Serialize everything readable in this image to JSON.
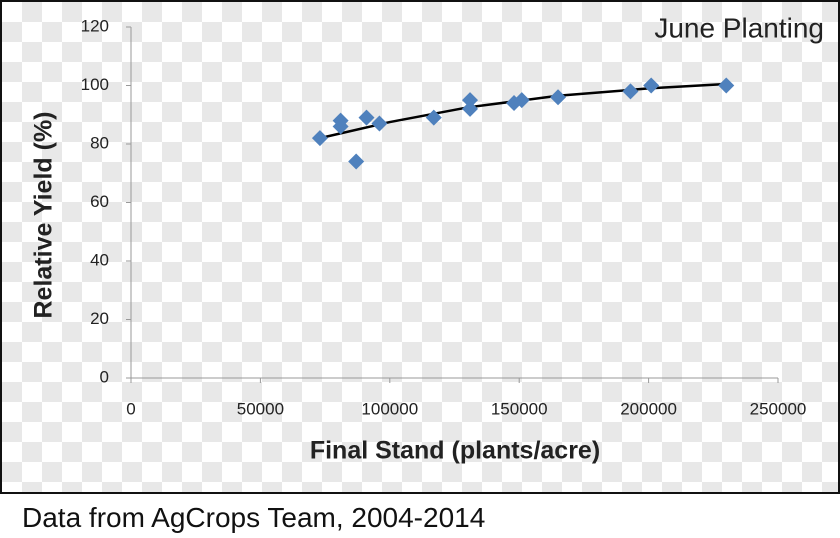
{
  "chart_data": {
    "type": "scatter",
    "title": "June Planting",
    "x_label": "Final Stand (plants/acre)",
    "y_label": "Relative Yield (%)",
    "x": [
      73000,
      81000,
      81000,
      87000,
      91000,
      96000,
      117000,
      131000,
      131000,
      148000,
      151000,
      165000,
      193000,
      201000,
      230000
    ],
    "series": [
      {
        "color": "#4f81bd",
        "values": [
          82,
          86,
          88,
          74,
          89,
          87,
          89,
          95,
          92,
          94,
          95,
          96,
          98,
          100,
          100
        ]
      }
    ],
    "trendline": {
      "color": "#000000",
      "x": [
        73000,
        100000,
        130000,
        165000,
        200000,
        230000
      ],
      "values": [
        82,
        87.5,
        92.5,
        96.5,
        99,
        100.5
      ]
    },
    "xlim": [
      0,
      250000
    ],
    "xticks": [
      0,
      50000,
      100000,
      150000,
      200000,
      250000
    ],
    "ylim": [
      0,
      120
    ],
    "yticks": [
      0,
      20,
      40,
      60,
      80,
      100,
      120
    ],
    "source": "Data from AgCrops Team, 2004-2014"
  }
}
